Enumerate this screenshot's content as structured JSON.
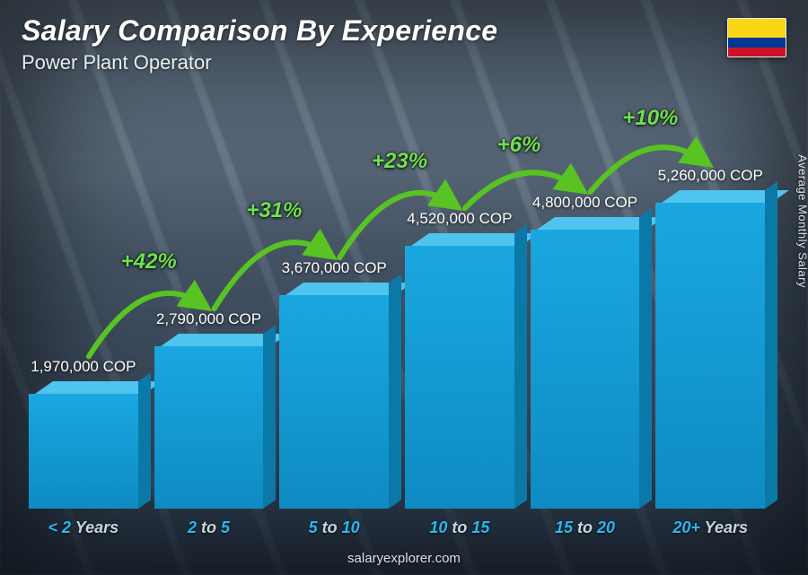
{
  "header": {
    "title": "Salary Comparison By Experience",
    "subtitle": "Power Plant Operator"
  },
  "flag": {
    "country": "Colombia",
    "stripes": [
      {
        "color": "#f9d616",
        "height_pct": 50
      },
      {
        "color": "#003893",
        "height_pct": 25
      },
      {
        "color": "#ce1126",
        "height_pct": 25
      }
    ]
  },
  "y_axis_label": "Average Monthly Salary",
  "footer": "salaryexplorer.com",
  "chart": {
    "type": "bar",
    "currency": "COP",
    "bar_color_front": "#1aa7e0",
    "bar_color_front_dark": "#0e8bc2",
    "bar_color_top": "#4fc4ee",
    "bar_color_side": "#0b79a8",
    "value_label_color": "#ffffff",
    "value_label_fontsize": 17,
    "x_label_color_accent": "#29b8f0",
    "x_label_color_dim": "#c9d5dc",
    "x_label_fontsize": 18,
    "arc_color": "#58c322",
    "arc_label_color": "#6fe24a",
    "arc_label_fontsize": 24,
    "max_value": 5260000,
    "bars": [
      {
        "category_pre": "< 2",
        "category_post": " Years",
        "value": 1970000,
        "label": "1,970,000 COP"
      },
      {
        "category_pre": "2",
        "category_mid": " to ",
        "category_post2": "5",
        "value": 2790000,
        "label": "2,790,000 COP",
        "increase": "+42%"
      },
      {
        "category_pre": "5",
        "category_mid": " to ",
        "category_post2": "10",
        "value": 3670000,
        "label": "3,670,000 COP",
        "increase": "+31%"
      },
      {
        "category_pre": "10",
        "category_mid": " to ",
        "category_post2": "15",
        "value": 4520000,
        "label": "4,520,000 COP",
        "increase": "+23%"
      },
      {
        "category_pre": "15",
        "category_mid": " to ",
        "category_post2": "20",
        "value": 4800000,
        "label": "4,800,000 COP",
        "increase": "+6%"
      },
      {
        "category_pre": "20+",
        "category_post": " Years",
        "value": 5260000,
        "label": "5,260,000 COP",
        "increase": "+10%"
      }
    ]
  }
}
